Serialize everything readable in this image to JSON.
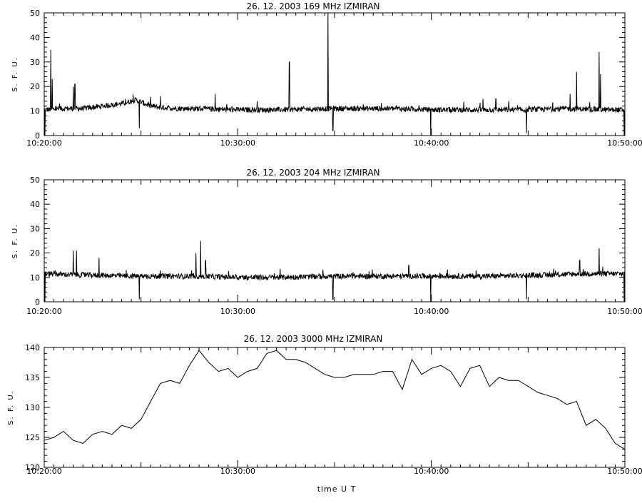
{
  "chart_data": [
    {
      "type": "line",
      "title": "26.  12.  2003    169 MHz    IZMIRAN",
      "ylabel": "S. F. U.",
      "xlabel": "",
      "xlim": [
        "10:20:00",
        "10:50:00"
      ],
      "ylim": [
        0,
        50
      ],
      "yticks": [
        "0",
        "10",
        "20",
        "30",
        "40",
        "50"
      ],
      "xticks": [
        "10:20:00",
        "10:30:00",
        "10:40:00",
        "10:50:00"
      ],
      "grid": false,
      "baseline": [
        [
          "10:20:00",
          10.5
        ],
        [
          "10:21:00",
          11
        ],
        [
          "10:22:00",
          11
        ],
        [
          "10:23:00",
          12
        ],
        [
          "10:24:00",
          13
        ],
        [
          "10:24:45",
          14.5
        ],
        [
          "10:25:30",
          12
        ],
        [
          "10:26:00",
          11.5
        ],
        [
          "10:27:00",
          11
        ],
        [
          "10:28:00",
          11
        ],
        [
          "10:30:00",
          10.5
        ],
        [
          "10:32:00",
          10.5
        ],
        [
          "10:35:00",
          11
        ],
        [
          "10:38:00",
          11
        ],
        [
          "10:40:00",
          10.5
        ],
        [
          "10:43:00",
          10.5
        ],
        [
          "10:45:00",
          10.5
        ],
        [
          "10:47:00",
          11
        ],
        [
          "10:49:00",
          10.5
        ],
        [
          "10:50:00",
          10.5
        ]
      ],
      "spikes": [
        [
          "10:20:20",
          35
        ],
        [
          "10:20:25",
          23
        ],
        [
          "10:21:30",
          20
        ],
        [
          "10:21:35",
          21
        ],
        [
          "10:26:00",
          16
        ],
        [
          "10:28:50",
          17
        ],
        [
          "10:31:00",
          14
        ],
        [
          "10:32:40",
          30
        ],
        [
          "10:34:40",
          50
        ],
        [
          "10:42:40",
          15
        ],
        [
          "10:43:20",
          15
        ],
        [
          "10:44:00",
          14
        ],
        [
          "10:47:10",
          17
        ],
        [
          "10:47:30",
          26
        ],
        [
          "10:48:40",
          34
        ],
        [
          "10:48:45",
          25
        ]
      ],
      "dips": [
        [
          "10:20:02",
          0
        ],
        [
          "10:24:55",
          3
        ],
        [
          "10:34:55",
          2
        ],
        [
          "10:39:58",
          0
        ],
        [
          "10:44:55",
          1
        ],
        [
          "10:49:58",
          0
        ]
      ]
    },
    {
      "type": "line",
      "title": "26.  12.  2003    204 MHz    IZMIRAN",
      "ylabel": "S. F. U.",
      "xlabel": "",
      "xlim": [
        "10:20:00",
        "10:50:00"
      ],
      "ylim": [
        0,
        50
      ],
      "yticks": [
        "0",
        "10",
        "20",
        "30",
        "40",
        "50"
      ],
      "xticks": [
        "10:20:00",
        "10:30:00",
        "10:40:00",
        "10:50:00"
      ],
      "grid": false,
      "baseline": [
        [
          "10:20:00",
          11.5
        ],
        [
          "10:22:00",
          11
        ],
        [
          "10:25:00",
          10.5
        ],
        [
          "10:28:00",
          10.5
        ],
        [
          "10:30:00",
          10
        ],
        [
          "10:32:00",
          10
        ],
        [
          "10:35:00",
          10.5
        ],
        [
          "10:38:00",
          10.5
        ],
        [
          "10:40:00",
          10.5
        ],
        [
          "10:43:00",
          10.5
        ],
        [
          "10:46:00",
          11
        ],
        [
          "10:48:00",
          11.5
        ],
        [
          "10:50:00",
          11.5
        ]
      ],
      "spikes": [
        [
          "10:21:30",
          21
        ],
        [
          "10:21:40",
          21
        ],
        [
          "10:22:50",
          18
        ],
        [
          "10:27:50",
          20
        ],
        [
          "10:28:05",
          25
        ],
        [
          "10:28:20",
          17
        ],
        [
          "10:38:50",
          15
        ],
        [
          "10:47:40",
          17
        ],
        [
          "10:48:40",
          22
        ]
      ],
      "dips": [
        [
          "10:20:02",
          0
        ],
        [
          "10:24:55",
          1
        ],
        [
          "10:34:55",
          1
        ],
        [
          "10:39:58",
          0
        ],
        [
          "10:44:55",
          1
        ],
        [
          "10:49:58",
          0
        ]
      ]
    },
    {
      "type": "line",
      "title": "26.  12.  2003    3000 MHz    IZMIRAN",
      "ylabel": "S. F. U.",
      "xlabel": "time  U T",
      "xlim": [
        "10:20:00",
        "10:50:00"
      ],
      "ylim": [
        120,
        140
      ],
      "yticks": [
        "120",
        "125",
        "130",
        "135",
        "140"
      ],
      "xticks": [
        "10:20:00",
        "10:30:00",
        "10:40:00",
        "10:50:00"
      ],
      "grid": false,
      "x": [
        "10:20:00",
        "10:20:30",
        "10:21:00",
        "10:21:30",
        "10:22:00",
        "10:22:30",
        "10:23:00",
        "10:23:30",
        "10:24:00",
        "10:24:30",
        "10:25:00",
        "10:25:30",
        "10:26:00",
        "10:26:30",
        "10:27:00",
        "10:27:30",
        "10:28:00",
        "10:28:30",
        "10:29:00",
        "10:29:30",
        "10:30:00",
        "10:30:30",
        "10:31:00",
        "10:31:30",
        "10:32:00",
        "10:32:30",
        "10:33:00",
        "10:33:30",
        "10:34:00",
        "10:34:30",
        "10:35:00",
        "10:35:30",
        "10:36:00",
        "10:36:30",
        "10:37:00",
        "10:37:30",
        "10:38:00",
        "10:38:30",
        "10:39:00",
        "10:39:30",
        "10:40:00",
        "10:40:30",
        "10:41:00",
        "10:41:30",
        "10:42:00",
        "10:42:30",
        "10:43:00",
        "10:43:30",
        "10:44:00",
        "10:44:30",
        "10:45:00",
        "10:45:30",
        "10:46:00",
        "10:46:30",
        "10:47:00",
        "10:47:30",
        "10:48:00",
        "10:48:30",
        "10:49:00",
        "10:49:30",
        "10:50:00"
      ],
      "y": [
        124.5,
        125.0,
        126.0,
        124.5,
        124.0,
        125.5,
        126.0,
        125.5,
        127.0,
        126.5,
        128.0,
        131.0,
        134.0,
        134.5,
        134.0,
        137.0,
        139.5,
        137.5,
        136.0,
        136.5,
        135.0,
        136.0,
        136.5,
        139.0,
        139.5,
        138.0,
        138.0,
        137.5,
        136.5,
        135.5,
        135.0,
        135.0,
        135.5,
        135.5,
        135.5,
        136.0,
        136.0,
        133.0,
        138.0,
        135.5,
        136.5,
        137.0,
        136.0,
        133.5,
        136.5,
        137.0,
        133.5,
        135.0,
        134.5,
        134.5,
        133.5,
        132.5,
        132.0,
        131.5,
        130.5,
        131.0,
        127.0,
        128.0,
        126.5,
        124.0,
        123.0
      ]
    }
  ]
}
